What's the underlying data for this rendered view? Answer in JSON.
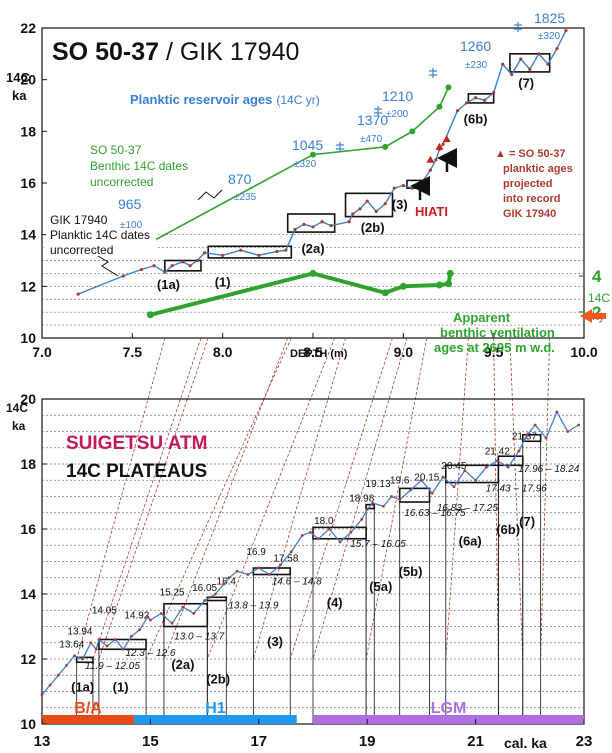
{
  "chart_data": [
    {
      "type": "line",
      "title": "SO 50-37 / GIK 17940",
      "title_bold_part": "SO 50-37",
      "title_rest": " / GIK 17940",
      "xlabel": "DEPTH  (m)",
      "ylabel_line1": "14C",
      "ylabel_line2": "ka",
      "ylabel_right_line1": "14C",
      "ylabel_right_line2": "ky",
      "xlim": [
        7.0,
        10.0
      ],
      "ylim": [
        10,
        22
      ],
      "x_ticks": [
        "7.0",
        "7.5",
        "8.0",
        "8.5",
        "9.0",
        "9.5",
        "10.0"
      ],
      "y_ticks": [
        "10",
        "12",
        "14",
        "16",
        "18",
        "20",
        "22"
      ],
      "right_ticks": [
        "2",
        "4"
      ],
      "colors": {
        "planktic": "#3a7fd5",
        "benthic": "#2ea32e",
        "ventilation": "#2ea32e",
        "reservoir": "#3a7fd5",
        "projected": "#b03a2e",
        "hiati": "#cc1f1f"
      },
      "series": [
        {
          "name": "GIK 17940 Planktic 14C dates uncorrected",
          "x": [
            7.2,
            7.45,
            7.55,
            7.62,
            7.68,
            7.72,
            7.78,
            7.82,
            7.86,
            7.9,
            8.0,
            8.1,
            8.2,
            8.3,
            8.35,
            8.4,
            8.45,
            8.5,
            8.55,
            8.6,
            8.7,
            8.72,
            8.76,
            8.8,
            8.85,
            8.9,
            8.95,
            9.0,
            9.05,
            9.1,
            9.15,
            9.18,
            9.2,
            9.22,
            9.3,
            9.35,
            9.4,
            9.45,
            9.5,
            9.55,
            9.6,
            9.65,
            9.7,
            9.75,
            9.8,
            9.85,
            9.9
          ],
          "values": [
            11.7,
            12.4,
            12.65,
            12.8,
            12.55,
            12.8,
            12.95,
            12.8,
            13.0,
            13.3,
            13.2,
            13.4,
            13.2,
            13.35,
            13.4,
            14.2,
            14.4,
            14.3,
            14.5,
            14.35,
            14.5,
            14.8,
            15.0,
            15.3,
            14.9,
            15.2,
            15.8,
            15.9,
            15.8,
            16.0,
            16.5,
            16.9,
            17.3,
            17.5,
            18.8,
            19.1,
            19.3,
            19.2,
            19.5,
            20.6,
            20.2,
            20.8,
            20.4,
            21.0,
            20.6,
            21.2,
            21.9
          ]
        },
        {
          "name": "SO 50-37 Benthic 14C dates uncorrected",
          "x": [
            7.6,
            8.5,
            8.9,
            9.05,
            9.2,
            9.25
          ],
          "values": [
            13.7,
            17.1,
            17.4,
            18.0,
            18.95,
            19.7
          ]
        },
        {
          "name": "Apparent benthic ventilation ages at 2695 m w.d.",
          "x": [
            7.6,
            8.5,
            8.9,
            9.0,
            9.2,
            9.25,
            9.26
          ],
          "values": [
            10.9,
            12.5,
            11.75,
            12.0,
            12.05,
            12.1,
            12.5
          ]
        }
      ],
      "plateau_labels": [
        "(1a)",
        "(1)",
        "(2a)",
        "(2b)",
        "(3)",
        "(6b)",
        "(7)"
      ],
      "reservoir_title": "Planktic reservoir ages",
      "reservoir_unit": "(14C yr)",
      "reservoir_values": [
        "965",
        "±100",
        "870",
        "±235",
        "1045",
        "±320",
        "1370",
        "±470",
        "1210",
        "±200",
        "1260",
        "±230",
        "1825",
        "±320"
      ],
      "annotations": {
        "benthic_label_1": "SO 50-37",
        "benthic_label_2": "Benthic 14C dates",
        "benthic_label_3": "uncorrected",
        "planktic_label_1": "GIK 17940",
        "planktic_label_2": "Planktic 14C dates",
        "planktic_label_3": "uncorrected",
        "hiati": "HIATI",
        "projected_1": "▲ =  SO 50-37",
        "projected_2": "planktic ages",
        "projected_3": "projected",
        "projected_4": "into record",
        "projected_5": "GIK 17940",
        "ventilation_1": "Apparent",
        "ventilation_2": "benthic ventilation",
        "ventilation_3": "ages at 2695 m w.d."
      }
    },
    {
      "type": "line",
      "title_line1": "SUIGETSU  ATM",
      "title_line2": "14C PLATEAUS",
      "xlabel": "cal. ka",
      "ylabel_line1": "14C",
      "ylabel_line2": "ka",
      "xlim": [
        13,
        23
      ],
      "ylim": [
        10,
        20
      ],
      "x_ticks": [
        "13",
        "15",
        "17",
        "19",
        "21",
        "23"
      ],
      "y_ticks": [
        "10",
        "12",
        "14",
        "16",
        "18",
        "20"
      ],
      "periods": [
        {
          "label": "B/A",
          "range": [
            13.0,
            14.7
          ],
          "color": "#e64a19"
        },
        {
          "label": "H1",
          "range": [
            14.7,
            17.7
          ],
          "color": "#2196f3"
        },
        {
          "label": "LGM",
          "range": [
            18.0,
            23.0
          ],
          "color": "#b06fe0"
        }
      ],
      "series": [
        {
          "name": "Suigetsu atmospheric 14C",
          "x": [
            13.0,
            13.15,
            13.3,
            13.45,
            13.6,
            13.75,
            13.9,
            14.0,
            14.05,
            14.2,
            14.35,
            14.5,
            14.65,
            14.8,
            14.95,
            15.0,
            15.2,
            15.4,
            15.6,
            15.8,
            16.0,
            16.1,
            16.2,
            16.35,
            16.45,
            16.6,
            16.8,
            17.0,
            17.2,
            17.4,
            17.6,
            17.8,
            17.95,
            18.1,
            18.3,
            18.5,
            18.7,
            18.9,
            19.0,
            19.1,
            19.3,
            19.45,
            19.6,
            19.8,
            20.0,
            20.2,
            20.4,
            20.6,
            20.8,
            21.0,
            21.2,
            21.4,
            21.6,
            21.8,
            21.95,
            22.1,
            22.3,
            22.5,
            22.7,
            22.9
          ],
          "values": [
            10.9,
            11.2,
            11.5,
            11.8,
            12.1,
            12.0,
            12.5,
            12.3,
            12.6,
            12.4,
            12.6,
            12.3,
            12.7,
            12.9,
            13.3,
            13.2,
            13.4,
            13.1,
            13.6,
            13.4,
            13.8,
            13.9,
            14.0,
            14.3,
            14.5,
            14.7,
            14.6,
            14.8,
            14.6,
            14.9,
            15.3,
            15.8,
            15.9,
            15.7,
            16.0,
            15.6,
            15.9,
            16.3,
            16.6,
            16.8,
            16.7,
            17.0,
            16.9,
            17.2,
            17.5,
            17.1,
            17.6,
            17.3,
            17.8,
            17.5,
            17.9,
            18.1,
            17.9,
            18.4,
            18.9,
            19.2,
            18.8,
            19.6,
            19.0,
            19.2
          ]
        }
      ],
      "plateau_top_labels": [
        "13.64",
        "13.94",
        "14.05",
        "14.92",
        "15.25",
        "16.05",
        "16.4",
        "16.9",
        "17.58",
        "18.0",
        "18.98",
        "19.13",
        "19.6",
        "20.15",
        "20.45",
        "21.42",
        "21.87"
      ],
      "plateau_range_labels": [
        "11.9 – 12.05",
        "12.3 – 12.6",
        "13.0 – 13.7",
        "13.8 – 13.9",
        "14.6 – 14.8",
        "15.7 – 16.05",
        "16.63 – 16.75",
        "16.83 – 17.25",
        "17.43 – 17.96",
        "17.96 – 18.24"
      ],
      "plateau_labels": [
        "(1a)",
        "(1)",
        "(2a)",
        "(2b)",
        "(3)",
        "(4)",
        "(5a)",
        "(5b)",
        "(6a)",
        "(6b)",
        "(7)"
      ]
    }
  ]
}
